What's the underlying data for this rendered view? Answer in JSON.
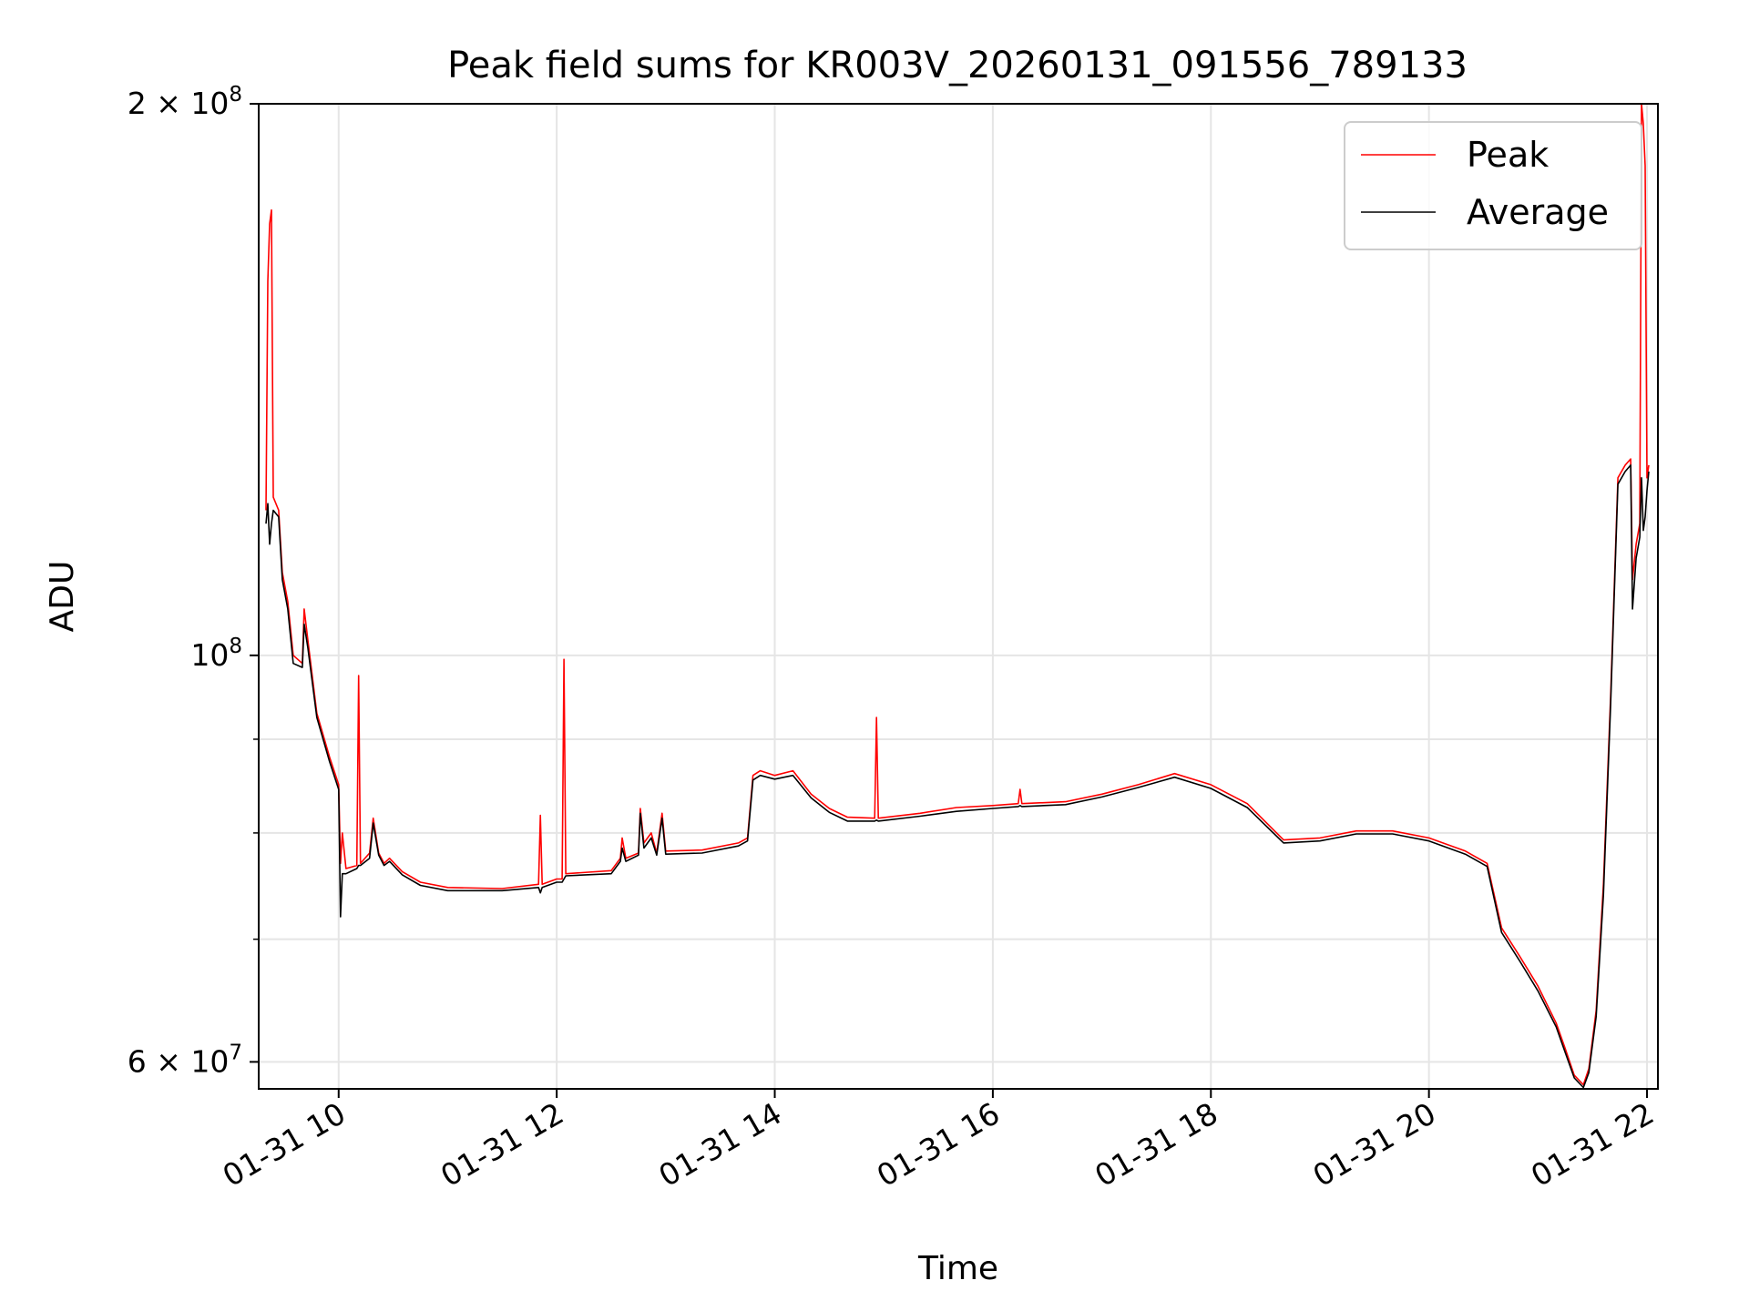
{
  "chart_data": {
    "type": "line",
    "title": "Peak field sums for KR003V_20260131_091556_789133",
    "xlabel": "Time",
    "ylabel": "ADU",
    "yscale": "log",
    "ylim": [
      58000000,
      200000000
    ],
    "xlim": [
      "2026-01-31T09:16",
      "2026-01-31T22:06"
    ],
    "grid": true,
    "legend_position": "upper right",
    "x_ticks": [
      {
        "at": "2026-01-31T10:00",
        "label": "01-31 10"
      },
      {
        "at": "2026-01-31T12:00",
        "label": "01-31 12"
      },
      {
        "at": "2026-01-31T14:00",
        "label": "01-31 14"
      },
      {
        "at": "2026-01-31T16:00",
        "label": "01-31 16"
      },
      {
        "at": "2026-01-31T18:00",
        "label": "01-31 18"
      },
      {
        "at": "2026-01-31T20:00",
        "label": "01-31 20"
      },
      {
        "at": "2026-01-31T22:00",
        "label": "01-31 22"
      }
    ],
    "y_major_ticks": [
      {
        "value": 60000000,
        "mantissa": "6",
        "exponent": "7"
      },
      {
        "value": 100000000,
        "mantissa": "",
        "exponent": "8"
      },
      {
        "value": 200000000,
        "mantissa": "2",
        "exponent": "8"
      }
    ],
    "y_minor_ticks": [
      70000000,
      80000000,
      90000000
    ],
    "series": [
      {
        "name": "Peak",
        "color": "#ff0000",
        "points": [
          [
            "2026-01-31T09:20",
            120000000
          ],
          [
            "2026-01-31T09:21",
            160000000
          ],
          [
            "2026-01-31T09:22",
            172000000
          ],
          [
            "2026-01-31T09:23",
            175000000
          ],
          [
            "2026-01-31T09:24",
            122000000
          ],
          [
            "2026-01-31T09:27",
            120000000
          ],
          [
            "2026-01-31T09:29",
            111000000
          ],
          [
            "2026-01-31T09:32",
            107000000
          ],
          [
            "2026-01-31T09:35",
            100000000
          ],
          [
            "2026-01-31T09:40",
            99000000
          ],
          [
            "2026-01-31T09:41",
            106000000
          ],
          [
            "2026-01-31T09:43",
            102000000
          ],
          [
            "2026-01-31T09:48",
            93000000
          ],
          [
            "2026-01-31T09:55",
            88000000
          ],
          [
            "2026-01-31T10:00",
            85000000
          ],
          [
            "2026-01-31T10:01",
            77000000
          ],
          [
            "2026-01-31T10:02",
            80000000
          ],
          [
            "2026-01-31T10:04",
            76500000
          ],
          [
            "2026-01-31T10:10",
            76800000
          ],
          [
            "2026-01-31T10:11",
            97500000
          ],
          [
            "2026-01-31T10:12",
            77000000
          ],
          [
            "2026-01-31T10:17",
            78000000
          ],
          [
            "2026-01-31T10:19",
            81500000
          ],
          [
            "2026-01-31T10:22",
            78000000
          ],
          [
            "2026-01-31T10:25",
            77000000
          ],
          [
            "2026-01-31T10:28",
            77500000
          ],
          [
            "2026-01-31T10:35",
            76200000
          ],
          [
            "2026-01-31T10:45",
            75200000
          ],
          [
            "2026-01-31T11:00",
            74700000
          ],
          [
            "2026-01-31T11:30",
            74600000
          ],
          [
            "2026-01-31T11:50",
            75000000
          ],
          [
            "2026-01-31T11:51",
            81800000
          ],
          [
            "2026-01-31T11:52",
            75000000
          ],
          [
            "2026-01-31T12:00",
            75500000
          ],
          [
            "2026-01-31T12:03",
            75500000
          ],
          [
            "2026-01-31T12:04",
            99500000
          ],
          [
            "2026-01-31T12:05",
            76000000
          ],
          [
            "2026-01-31T12:30",
            76300000
          ],
          [
            "2026-01-31T12:35",
            77500000
          ],
          [
            "2026-01-31T12:36",
            79500000
          ],
          [
            "2026-01-31T12:38",
            77500000
          ],
          [
            "2026-01-31T12:45",
            78000000
          ],
          [
            "2026-01-31T12:46",
            82500000
          ],
          [
            "2026-01-31T12:48",
            79000000
          ],
          [
            "2026-01-31T12:52",
            80000000
          ],
          [
            "2026-01-31T12:55",
            78000000
          ],
          [
            "2026-01-31T12:58",
            82000000
          ],
          [
            "2026-01-31T13:00",
            78200000
          ],
          [
            "2026-01-31T13:20",
            78300000
          ],
          [
            "2026-01-31T13:40",
            79000000
          ],
          [
            "2026-01-31T13:45",
            79500000
          ],
          [
            "2026-01-31T13:48",
            86000000
          ],
          [
            "2026-01-31T13:52",
            86500000
          ],
          [
            "2026-01-31T14:00",
            86000000
          ],
          [
            "2026-01-31T14:10",
            86500000
          ],
          [
            "2026-01-31T14:20",
            84000000
          ],
          [
            "2026-01-31T14:30",
            82500000
          ],
          [
            "2026-01-31T14:40",
            81600000
          ],
          [
            "2026-01-31T14:55",
            81500000
          ],
          [
            "2026-01-31T14:56",
            92500000
          ],
          [
            "2026-01-31T14:57",
            81500000
          ],
          [
            "2026-01-31T15:20",
            82000000
          ],
          [
            "2026-01-31T15:40",
            82600000
          ],
          [
            "2026-01-31T16:00",
            82800000
          ],
          [
            "2026-01-31T16:14",
            83000000
          ],
          [
            "2026-01-31T16:15",
            84500000
          ],
          [
            "2026-01-31T16:16",
            83000000
          ],
          [
            "2026-01-31T16:40",
            83200000
          ],
          [
            "2026-01-31T17:00",
            84000000
          ],
          [
            "2026-01-31T17:20",
            85000000
          ],
          [
            "2026-01-31T17:40",
            86200000
          ],
          [
            "2026-01-31T18:00",
            85000000
          ],
          [
            "2026-01-31T18:20",
            83000000
          ],
          [
            "2026-01-31T18:40",
            79300000
          ],
          [
            "2026-01-31T19:00",
            79500000
          ],
          [
            "2026-01-31T19:20",
            80200000
          ],
          [
            "2026-01-31T19:40",
            80200000
          ],
          [
            "2026-01-31T20:00",
            79500000
          ],
          [
            "2026-01-31T20:20",
            78200000
          ],
          [
            "2026-01-31T20:32",
            77000000
          ],
          [
            "2026-01-31T20:40",
            71000000
          ],
          [
            "2026-01-31T20:50",
            68500000
          ],
          [
            "2026-01-31T21:00",
            66000000
          ],
          [
            "2026-01-31T21:10",
            63000000
          ],
          [
            "2026-01-31T21:15",
            61000000
          ],
          [
            "2026-01-31T21:20",
            59000000
          ],
          [
            "2026-01-31T21:25",
            58300000
          ],
          [
            "2026-01-31T21:28",
            59500000
          ],
          [
            "2026-01-31T21:32",
            64000000
          ],
          [
            "2026-01-31T21:36",
            75000000
          ],
          [
            "2026-01-31T21:40",
            95000000
          ],
          [
            "2026-01-31T21:44",
            125000000
          ],
          [
            "2026-01-31T21:48",
            127000000
          ],
          [
            "2026-01-31T21:51",
            128000000
          ],
          [
            "2026-01-31T21:52",
            110000000
          ],
          [
            "2026-01-31T21:54",
            115000000
          ],
          [
            "2026-01-31T21:56",
            118000000
          ],
          [
            "2026-01-31T21:57",
            200000000
          ],
          [
            "2026-01-31T21:58",
            195000000
          ],
          [
            "2026-01-31T21:59",
            185000000
          ],
          [
            "2026-01-31T22:00",
            125000000
          ],
          [
            "2026-01-31T22:01",
            127000000
          ]
        ]
      },
      {
        "name": "Average",
        "color": "#000000",
        "points": [
          [
            "2026-01-31T09:20",
            118000000
          ],
          [
            "2026-01-31T09:21",
            121000000
          ],
          [
            "2026-01-31T09:22",
            115000000
          ],
          [
            "2026-01-31T09:23",
            118000000
          ],
          [
            "2026-01-31T09:24",
            120000000
          ],
          [
            "2026-01-31T09:27",
            119000000
          ],
          [
            "2026-01-31T09:29",
            110000000
          ],
          [
            "2026-01-31T09:32",
            106000000
          ],
          [
            "2026-01-31T09:35",
            99000000
          ],
          [
            "2026-01-31T09:40",
            98500000
          ],
          [
            "2026-01-31T09:41",
            104000000
          ],
          [
            "2026-01-31T09:43",
            101000000
          ],
          [
            "2026-01-31T09:48",
            92500000
          ],
          [
            "2026-01-31T09:55",
            87500000
          ],
          [
            "2026-01-31T10:00",
            84500000
          ],
          [
            "2026-01-31T10:01",
            72000000
          ],
          [
            "2026-01-31T10:02",
            76000000
          ],
          [
            "2026-01-31T10:04",
            76000000
          ],
          [
            "2026-01-31T10:10",
            76500000
          ],
          [
            "2026-01-31T10:11",
            76800000
          ],
          [
            "2026-01-31T10:12",
            76800000
          ],
          [
            "2026-01-31T10:17",
            77500000
          ],
          [
            "2026-01-31T10:19",
            81000000
          ],
          [
            "2026-01-31T10:22",
            77800000
          ],
          [
            "2026-01-31T10:25",
            76800000
          ],
          [
            "2026-01-31T10:28",
            77200000
          ],
          [
            "2026-01-31T10:35",
            75900000
          ],
          [
            "2026-01-31T10:45",
            74900000
          ],
          [
            "2026-01-31T11:00",
            74400000
          ],
          [
            "2026-01-31T11:30",
            74400000
          ],
          [
            "2026-01-31T11:50",
            74700000
          ],
          [
            "2026-01-31T11:51",
            74200000
          ],
          [
            "2026-01-31T11:52",
            74700000
          ],
          [
            "2026-01-31T12:00",
            75200000
          ],
          [
            "2026-01-31T12:03",
            75200000
          ],
          [
            "2026-01-31T12:04",
            75500000
          ],
          [
            "2026-01-31T12:05",
            75800000
          ],
          [
            "2026-01-31T12:30",
            76000000
          ],
          [
            "2026-01-31T12:35",
            77200000
          ],
          [
            "2026-01-31T12:36",
            78500000
          ],
          [
            "2026-01-31T12:38",
            77200000
          ],
          [
            "2026-01-31T12:45",
            77800000
          ],
          [
            "2026-01-31T12:46",
            82000000
          ],
          [
            "2026-01-31T12:48",
            78500000
          ],
          [
            "2026-01-31T12:52",
            79500000
          ],
          [
            "2026-01-31T12:55",
            77800000
          ],
          [
            "2026-01-31T12:58",
            81500000
          ],
          [
            "2026-01-31T13:00",
            77900000
          ],
          [
            "2026-01-31T13:20",
            78000000
          ],
          [
            "2026-01-31T13:40",
            78700000
          ],
          [
            "2026-01-31T13:45",
            79200000
          ],
          [
            "2026-01-31T13:48",
            85500000
          ],
          [
            "2026-01-31T13:52",
            86000000
          ],
          [
            "2026-01-31T14:00",
            85600000
          ],
          [
            "2026-01-31T14:10",
            86000000
          ],
          [
            "2026-01-31T14:20",
            83600000
          ],
          [
            "2026-01-31T14:30",
            82100000
          ],
          [
            "2026-01-31T14:40",
            81200000
          ],
          [
            "2026-01-31T14:55",
            81200000
          ],
          [
            "2026-01-31T14:56",
            81300000
          ],
          [
            "2026-01-31T14:57",
            81200000
          ],
          [
            "2026-01-31T15:20",
            81700000
          ],
          [
            "2026-01-31T15:40",
            82200000
          ],
          [
            "2026-01-31T16:00",
            82500000
          ],
          [
            "2026-01-31T16:14",
            82700000
          ],
          [
            "2026-01-31T16:15",
            82800000
          ],
          [
            "2026-01-31T16:16",
            82700000
          ],
          [
            "2026-01-31T16:40",
            82900000
          ],
          [
            "2026-01-31T17:00",
            83700000
          ],
          [
            "2026-01-31T17:20",
            84700000
          ],
          [
            "2026-01-31T17:40",
            85800000
          ],
          [
            "2026-01-31T18:00",
            84600000
          ],
          [
            "2026-01-31T18:20",
            82600000
          ],
          [
            "2026-01-31T18:40",
            79000000
          ],
          [
            "2026-01-31T19:00",
            79200000
          ],
          [
            "2026-01-31T19:20",
            79900000
          ],
          [
            "2026-01-31T19:40",
            79900000
          ],
          [
            "2026-01-31T20:00",
            79200000
          ],
          [
            "2026-01-31T20:20",
            77900000
          ],
          [
            "2026-01-31T20:32",
            76700000
          ],
          [
            "2026-01-31T20:40",
            70600000
          ],
          [
            "2026-01-31T20:50",
            68100000
          ],
          [
            "2026-01-31T21:00",
            65600000
          ],
          [
            "2026-01-31T21:10",
            62700000
          ],
          [
            "2026-01-31T21:15",
            60700000
          ],
          [
            "2026-01-31T21:20",
            58800000
          ],
          [
            "2026-01-31T21:25",
            58100000
          ],
          [
            "2026-01-31T21:28",
            59200000
          ],
          [
            "2026-01-31T21:32",
            63500000
          ],
          [
            "2026-01-31T21:36",
            74000000
          ],
          [
            "2026-01-31T21:40",
            94000000
          ],
          [
            "2026-01-31T21:44",
            124000000
          ],
          [
            "2026-01-31T21:48",
            126000000
          ],
          [
            "2026-01-31T21:51",
            127000000
          ],
          [
            "2026-01-31T21:52",
            106000000
          ],
          [
            "2026-01-31T21:54",
            113000000
          ],
          [
            "2026-01-31T21:56",
            116000000
          ],
          [
            "2026-01-31T21:57",
            125000000
          ],
          [
            "2026-01-31T21:58",
            117000000
          ],
          [
            "2026-01-31T21:59",
            119000000
          ],
          [
            "2026-01-31T22:00",
            123000000
          ],
          [
            "2026-01-31T22:01",
            126000000
          ]
        ]
      }
    ]
  }
}
